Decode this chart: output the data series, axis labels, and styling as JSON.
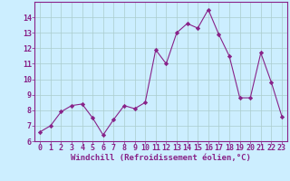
{
  "x": [
    0,
    1,
    2,
    3,
    4,
    5,
    6,
    7,
    8,
    9,
    10,
    11,
    12,
    13,
    14,
    15,
    16,
    17,
    18,
    19,
    20,
    21,
    22,
    23
  ],
  "y": [
    6.6,
    7.0,
    7.9,
    8.3,
    8.4,
    7.5,
    6.4,
    7.4,
    8.3,
    8.1,
    8.5,
    11.9,
    11.0,
    13.0,
    13.6,
    13.3,
    14.5,
    12.9,
    11.5,
    8.8,
    8.8,
    11.7,
    9.8,
    7.6
  ],
  "extra_x": 23,
  "extra_y": 8.5,
  "line_color": "#882288",
  "marker": "D",
  "marker_size": 2.2,
  "bg_color": "#cceeff",
  "grid_color": "#aacccc",
  "xlabel": "Windchill (Refroidissement éolien,°C)",
  "ylim": [
    6,
    15
  ],
  "xlim": [
    -0.5,
    23.5
  ],
  "yticks": [
    6,
    7,
    8,
    9,
    10,
    11,
    12,
    13,
    14
  ],
  "xticks": [
    0,
    1,
    2,
    3,
    4,
    5,
    6,
    7,
    8,
    9,
    10,
    11,
    12,
    13,
    14,
    15,
    16,
    17,
    18,
    19,
    20,
    21,
    22,
    23
  ],
  "label_fontsize": 6.5,
  "tick_fontsize": 6.0
}
